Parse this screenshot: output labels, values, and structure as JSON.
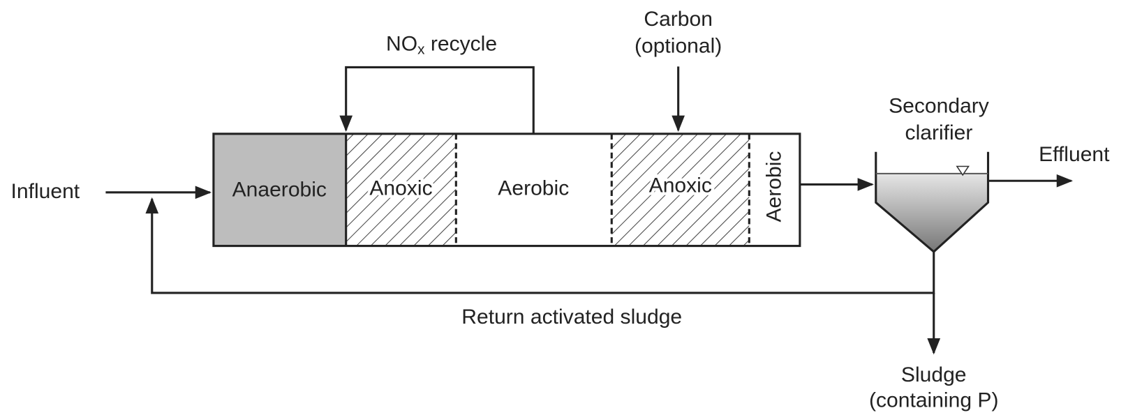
{
  "influent": "Influent",
  "effluent": "Effluent",
  "zones": [
    "Anaerobic",
    "Anoxic",
    "Aerobic",
    "Anoxic",
    "Aerobic"
  ],
  "nox_recycle": {
    "main": "NO",
    "sub": "x",
    "rest": " recycle"
  },
  "carbon": [
    "Carbon",
    "(optional)"
  ],
  "clarifier": [
    "Secondary",
    "clarifier"
  ],
  "return_sludge": "Return activated sludge",
  "sludge": [
    "Sludge",
    "(containing P)"
  ]
}
